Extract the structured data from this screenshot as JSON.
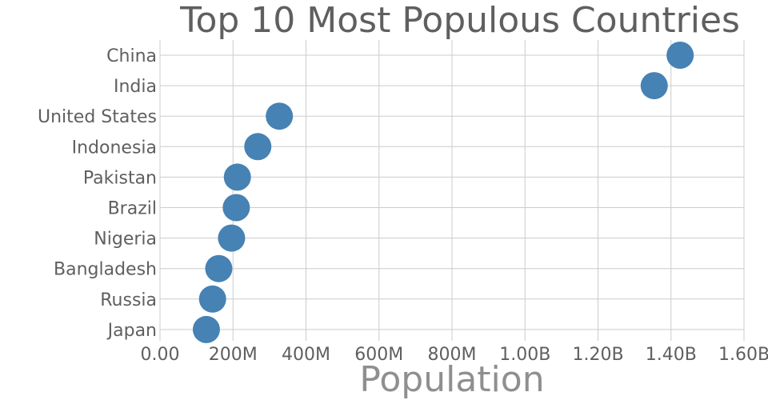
{
  "chart_data": {
    "type": "scatter",
    "title": "Top 10 Most Populous Countries",
    "xlabel": "Population",
    "ylabel": "",
    "xlim": [
      0,
      1600000000
    ],
    "x_ticks": [
      0,
      200000000,
      400000000,
      600000000,
      800000000,
      1000000000,
      1200000000,
      1400000000,
      1600000000
    ],
    "x_tick_labels": [
      "0.00",
      "200M",
      "400M",
      "600M",
      "800M",
      "1.00B",
      "1.20B",
      "1.40B",
      "1.60B"
    ],
    "grid": true,
    "marker_color": "#4682b4",
    "points": [
      {
        "country": "China",
        "population": 1425000000
      },
      {
        "country": "India",
        "population": 1354000000
      },
      {
        "country": "United States",
        "population": 327000000
      },
      {
        "country": "Indonesia",
        "population": 268000000
      },
      {
        "country": "Pakistan",
        "population": 212000000
      },
      {
        "country": "Brazil",
        "population": 209000000
      },
      {
        "country": "Nigeria",
        "population": 196000000
      },
      {
        "country": "Bangladesh",
        "population": 161000000
      },
      {
        "country": "Russia",
        "population": 144000000
      },
      {
        "country": "Japan",
        "population": 127000000
      }
    ]
  }
}
